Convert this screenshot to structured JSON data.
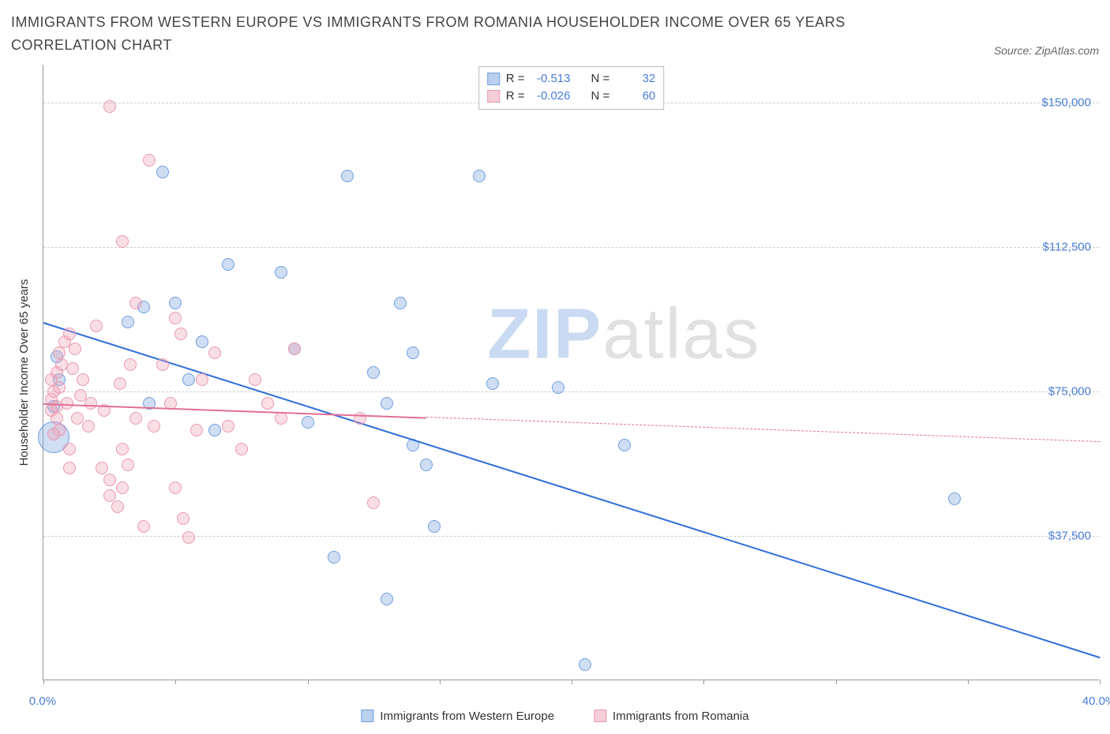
{
  "header": {
    "title": "IMMIGRANTS FROM WESTERN EUROPE VS IMMIGRANTS FROM ROMANIA HOUSEHOLDER INCOME OVER 65 YEARS CORRELATION CHART",
    "source_prefix": "Source: ",
    "source_name": "ZipAtlas.com"
  },
  "watermark": {
    "zip": "ZIP",
    "atlas": "atlas",
    "zip_color": "#c9daf2",
    "atlas_color": "#e1e1e1"
  },
  "chart": {
    "type": "scatter",
    "background_color": "#ffffff",
    "grid_color": "#cccccc",
    "axis_color": "#999999",
    "tick_label_color": "#4a7dd8",
    "ylabel": "Householder Income Over 65 years",
    "xlim": [
      0,
      40
    ],
    "ylim": [
      0,
      160000
    ],
    "y_gridlines": [
      37500,
      75000,
      112500,
      150000
    ],
    "y_tick_labels": [
      "$37,500",
      "$75,000",
      "$112,500",
      "$150,000"
    ],
    "x_ticks": [
      0,
      5,
      10,
      15,
      20,
      25,
      30,
      35,
      40
    ],
    "x_tick_labels": {
      "0": "0.0%",
      "40": "40.0%"
    },
    "marker_radius": 8,
    "marker_stroke_width": 1.5,
    "series": [
      {
        "key": "western_europe",
        "label": "Immigrants from Western Europe",
        "fill": "rgba(120,160,220,0.35)",
        "stroke": "#6f9fe0",
        "swatch_fill": "#b9d0ef",
        "swatch_border": "#6f9fe0",
        "R": "-0.513",
        "N": "32",
        "trend": {
          "x1": 0,
          "y1": 93000,
          "x2": 40,
          "y2": 6000,
          "color": "#2f6fd8",
          "dash_from_x": null
        },
        "points": [
          [
            0.4,
            63000,
            20
          ],
          [
            0.4,
            71000
          ],
          [
            0.6,
            78000
          ],
          [
            0.5,
            84000
          ],
          [
            4.5,
            132000
          ],
          [
            3.8,
            97000
          ],
          [
            3.2,
            93000
          ],
          [
            5.0,
            98000
          ],
          [
            5.5,
            78000
          ],
          [
            4.0,
            72000
          ],
          [
            6.5,
            65000
          ],
          [
            7.0,
            108000
          ],
          [
            9.0,
            106000
          ],
          [
            9.5,
            86000
          ],
          [
            10.0,
            67000
          ],
          [
            11.5,
            131000
          ],
          [
            11.0,
            32000
          ],
          [
            12.5,
            80000
          ],
          [
            13.0,
            72000
          ],
          [
            13.5,
            98000
          ],
          [
            14.0,
            61000
          ],
          [
            14.5,
            56000
          ],
          [
            14.8,
            40000
          ],
          [
            13.0,
            21000
          ],
          [
            16.5,
            131000
          ],
          [
            17.0,
            77000
          ],
          [
            19.5,
            76000
          ],
          [
            20.5,
            4000
          ],
          [
            22.0,
            61000
          ],
          [
            34.5,
            47000
          ],
          [
            14.0,
            85000
          ],
          [
            6.0,
            88000
          ]
        ]
      },
      {
        "key": "romania",
        "label": "Immigrants from Romania",
        "fill": "rgba(240,160,180,0.35)",
        "stroke": "#e89ab0",
        "swatch_fill": "#f6cdd8",
        "swatch_border": "#e89ab0",
        "R": "-0.026",
        "N": "60",
        "trend": {
          "x1": 0,
          "y1": 72000,
          "x2": 40,
          "y2": 62000,
          "color": "#e26f94",
          "dash_from_x": 14.5
        },
        "points": [
          [
            0.3,
            73000
          ],
          [
            0.4,
            75000
          ],
          [
            0.3,
            70000
          ],
          [
            0.5,
            68000
          ],
          [
            0.3,
            78000
          ],
          [
            0.6,
            85000
          ],
          [
            0.5,
            80000
          ],
          [
            0.8,
            88000
          ],
          [
            0.7,
            82000
          ],
          [
            0.6,
            65000
          ],
          [
            0.9,
            72000
          ],
          [
            1.0,
            90000
          ],
          [
            1.2,
            86000
          ],
          [
            1.5,
            78000
          ],
          [
            1.3,
            68000
          ],
          [
            1.0,
            60000
          ],
          [
            1.8,
            72000
          ],
          [
            2.0,
            92000
          ],
          [
            2.2,
            55000
          ],
          [
            2.5,
            52000
          ],
          [
            2.5,
            48000
          ],
          [
            2.8,
            45000
          ],
          [
            3.0,
            50000
          ],
          [
            3.2,
            56000
          ],
          [
            3.0,
            60000
          ],
          [
            3.5,
            68000
          ],
          [
            3.8,
            40000
          ],
          [
            2.5,
            149000
          ],
          [
            3.0,
            114000
          ],
          [
            3.5,
            98000
          ],
          [
            4.0,
            135000
          ],
          [
            4.5,
            82000
          ],
          [
            4.8,
            72000
          ],
          [
            5.0,
            94000
          ],
          [
            5.2,
            90000
          ],
          [
            5.0,
            50000
          ],
          [
            5.3,
            42000
          ],
          [
            5.5,
            37000
          ],
          [
            5.8,
            65000
          ],
          [
            6.0,
            78000
          ],
          [
            6.5,
            85000
          ],
          [
            7.0,
            66000
          ],
          [
            7.5,
            60000
          ],
          [
            8.0,
            78000
          ],
          [
            8.5,
            72000
          ],
          [
            9.0,
            68000
          ],
          [
            9.5,
            86000
          ],
          [
            12.0,
            68000
          ],
          [
            12.5,
            46000
          ],
          [
            0.4,
            64000
          ],
          [
            0.6,
            76000
          ],
          [
            1.1,
            81000
          ],
          [
            1.4,
            74000
          ],
          [
            1.7,
            66000
          ],
          [
            2.3,
            70000
          ],
          [
            2.9,
            77000
          ],
          [
            3.3,
            82000
          ],
          [
            4.2,
            66000
          ],
          [
            1.0,
            55000
          ],
          [
            0.5,
            71000
          ]
        ]
      }
    ],
    "stats_legend": {
      "R_label": "R =",
      "N_label": "N ="
    }
  }
}
